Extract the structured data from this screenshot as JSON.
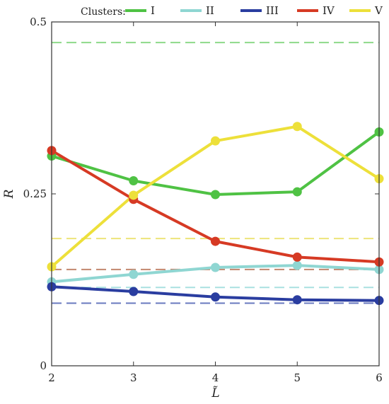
{
  "chart_data": {
    "type": "line",
    "xlabel": "L̃",
    "ylabel": "R",
    "xlim": [
      2,
      6
    ],
    "ylim": [
      0,
      0.5
    ],
    "x_ticks": [
      "2",
      "3",
      "4",
      "5",
      "6"
    ],
    "y_ticks": [
      {
        "value": 0,
        "label": "0"
      },
      {
        "value": 0.25,
        "label": "0.25"
      },
      {
        "value": 0.5,
        "label": "0.5"
      }
    ],
    "grid": false,
    "legend": {
      "title": "Clusters:",
      "placement": "top"
    },
    "x": [
      2,
      3,
      4,
      5,
      6
    ],
    "series": [
      {
        "name": "I",
        "color": "#4fc244",
        "dash_color": "#8dd98a",
        "values": [
          0.305,
          0.269,
          0.249,
          0.253,
          0.34
        ],
        "reference": 0.47
      },
      {
        "name": "II",
        "color": "#8fd6d2",
        "dash_color": "#a9e0e0",
        "values": [
          0.122,
          0.133,
          0.143,
          0.146,
          0.14
        ],
        "reference": 0.114
      },
      {
        "name": "III",
        "color": "#2a3da0",
        "dash_color": "#6a79bf",
        "values": [
          0.115,
          0.108,
          0.1,
          0.096,
          0.095
        ],
        "reference": 0.091
      },
      {
        "name": "IV",
        "color": "#d63a24",
        "dash_color": "#c2876f",
        "values": [
          0.313,
          0.242,
          0.181,
          0.158,
          0.151
        ],
        "reference": 0.14
      },
      {
        "name": "V",
        "color": "#ede03a",
        "dash_color": "#ede47a",
        "values": [
          0.144,
          0.248,
          0.327,
          0.348,
          0.272
        ],
        "reference": 0.185
      }
    ]
  }
}
